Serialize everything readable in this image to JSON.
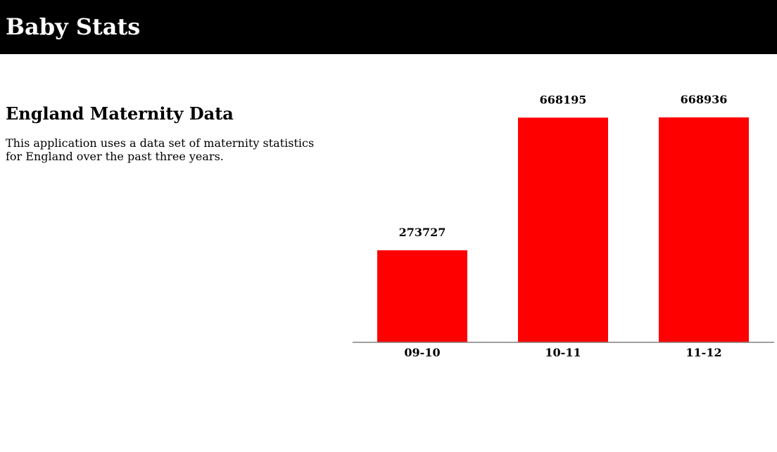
{
  "header": {
    "title": "Baby Stats"
  },
  "intro": {
    "title": "England Maternity Data",
    "description": "This application uses a data set of maternity statistics for England over the past three years."
  },
  "colors": {
    "header_bg": "#000000",
    "bar": "#ff0000",
    "axis": "#808080"
  },
  "chart_data": {
    "type": "bar",
    "categories": [
      "09-10",
      "10-11",
      "11-12"
    ],
    "values": [
      273727,
      668195,
      668936
    ],
    "data_labels": [
      "273727",
      "668195",
      "668936"
    ],
    "title": "",
    "xlabel": "",
    "ylabel": "",
    "ylim": [
      0,
      668936
    ],
    "grid": false,
    "legend": "none"
  }
}
